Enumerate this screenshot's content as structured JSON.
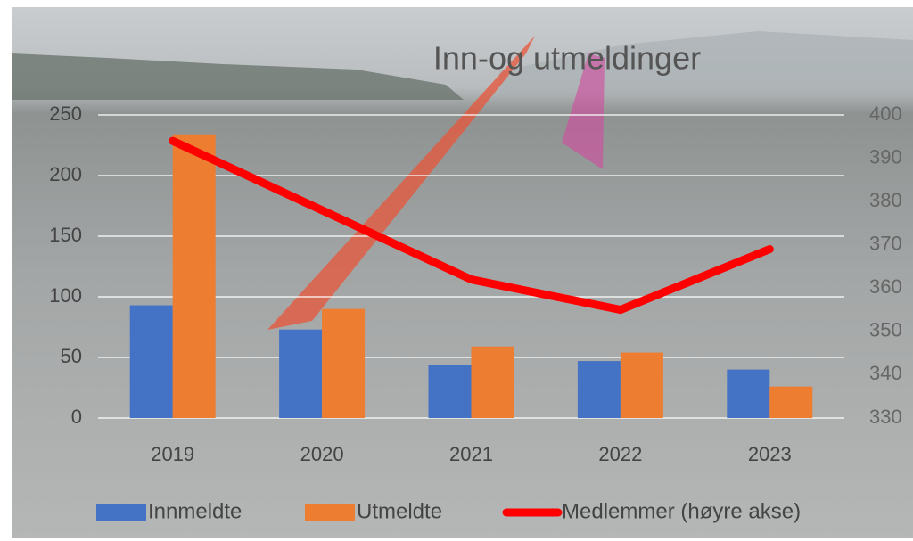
{
  "chart_data": {
    "type": "bar",
    "title": "Inn-og utmeldinger",
    "categories": [
      "2019",
      "2020",
      "2021",
      "2022",
      "2023"
    ],
    "series": [
      {
        "name": "Innmeldte",
        "color": "#4472c4",
        "values": [
          93,
          73,
          44,
          47,
          40
        ]
      },
      {
        "name": "Utmeldte",
        "color": "#ed7d31",
        "values": [
          234,
          90,
          59,
          54,
          26
        ]
      },
      {
        "name": "Medlemmer (høyre akse)",
        "color": "#ff0000",
        "type": "line",
        "axis": "y2",
        "values": [
          394,
          378,
          362,
          355,
          369
        ]
      }
    ],
    "ylim": [
      0,
      250
    ],
    "yticks": [
      0,
      50,
      100,
      150,
      200,
      250
    ],
    "y2lim": [
      330,
      400
    ],
    "y2ticks": [
      330,
      340,
      350,
      360,
      370,
      380,
      390,
      400
    ],
    "grid": true,
    "legend": "bottom"
  }
}
